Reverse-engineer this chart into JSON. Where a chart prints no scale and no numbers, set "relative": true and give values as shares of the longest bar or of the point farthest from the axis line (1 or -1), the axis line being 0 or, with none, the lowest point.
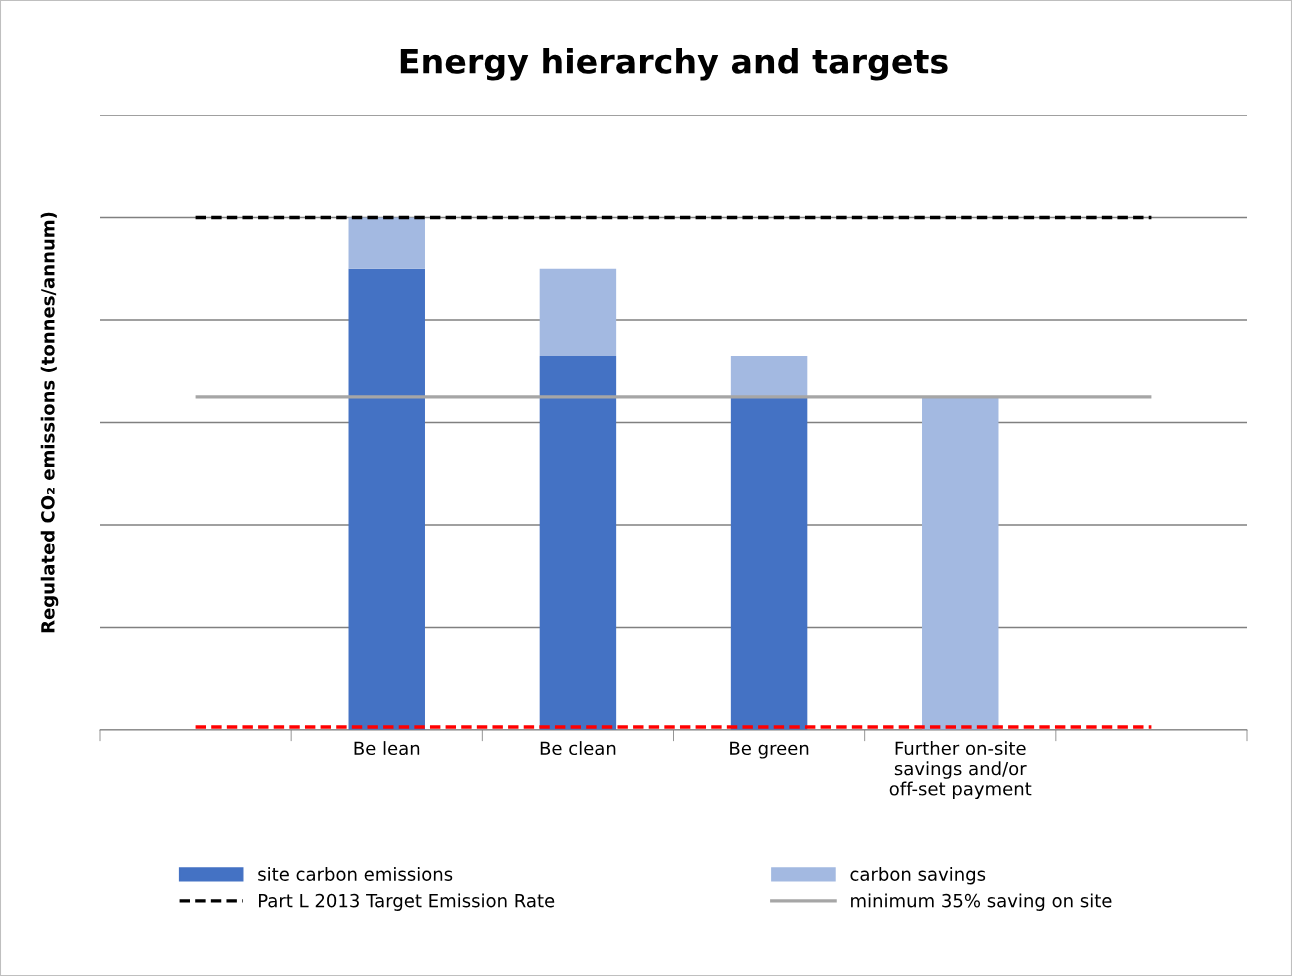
{
  "chart_data": {
    "type": "bar",
    "title": "Energy hierarchy and targets",
    "ylabel": "Regulated CO₂ emissions (tonnes/annum)",
    "categories": [
      null,
      "Be lean",
      "Be clean",
      "Be green",
      "Further on-site\nsavings and/or\noff-set payment",
      null
    ],
    "stacked": true,
    "relative": true,
    "grid": "y",
    "legend": "bottom",
    "series": [
      {
        "name": "site carbon emissions",
        "color": "#4472c4",
        "values": [
          null,
          0.9,
          0.73,
          0.65,
          null,
          null
        ]
      },
      {
        "name": "carbon savings",
        "color": "#a3b9e1",
        "values": [
          null,
          0.1,
          0.17,
          0.08,
          0.65,
          null
        ]
      }
    ],
    "ref_lines": [
      {
        "axis": "y",
        "value": 1.0,
        "label": "Part L 2013 Target Emission Rate",
        "color": "#000000",
        "line_style": "dashed"
      },
      {
        "axis": "y",
        "value": 0.65,
        "label": "minimum 35% saving on site",
        "color": "#a6a6a6",
        "line_style": "solid"
      },
      {
        "axis": "y",
        "value": 0.006,
        "label": null,
        "color": "#ff0000",
        "line_style": "dashed"
      }
    ]
  }
}
